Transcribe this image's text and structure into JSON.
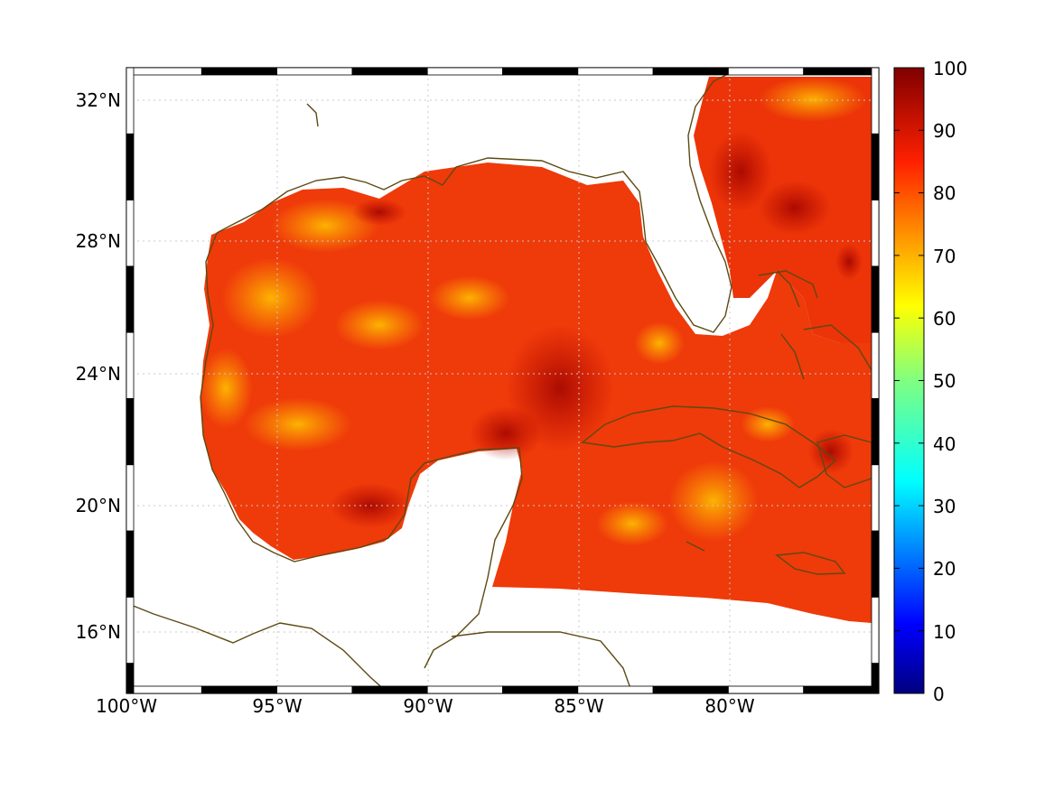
{
  "map": {
    "lon_ticks": [
      "100°W",
      "95°W",
      "90°W",
      "85°W",
      "80°W"
    ],
    "lat_ticks": [
      "32°N",
      "28°N",
      "24°N",
      "20°N",
      "16°N"
    ],
    "grid": true,
    "colors": {
      "coast": "#5c4a12",
      "land": "#ffffff",
      "grid": "#c8c8c8"
    }
  },
  "colorbar": {
    "colormap": "jet",
    "range": [
      0,
      100
    ],
    "tick_labels": [
      "100",
      "90",
      "80",
      "70",
      "60",
      "50",
      "40",
      "30",
      "20",
      "10",
      "0"
    ]
  }
}
